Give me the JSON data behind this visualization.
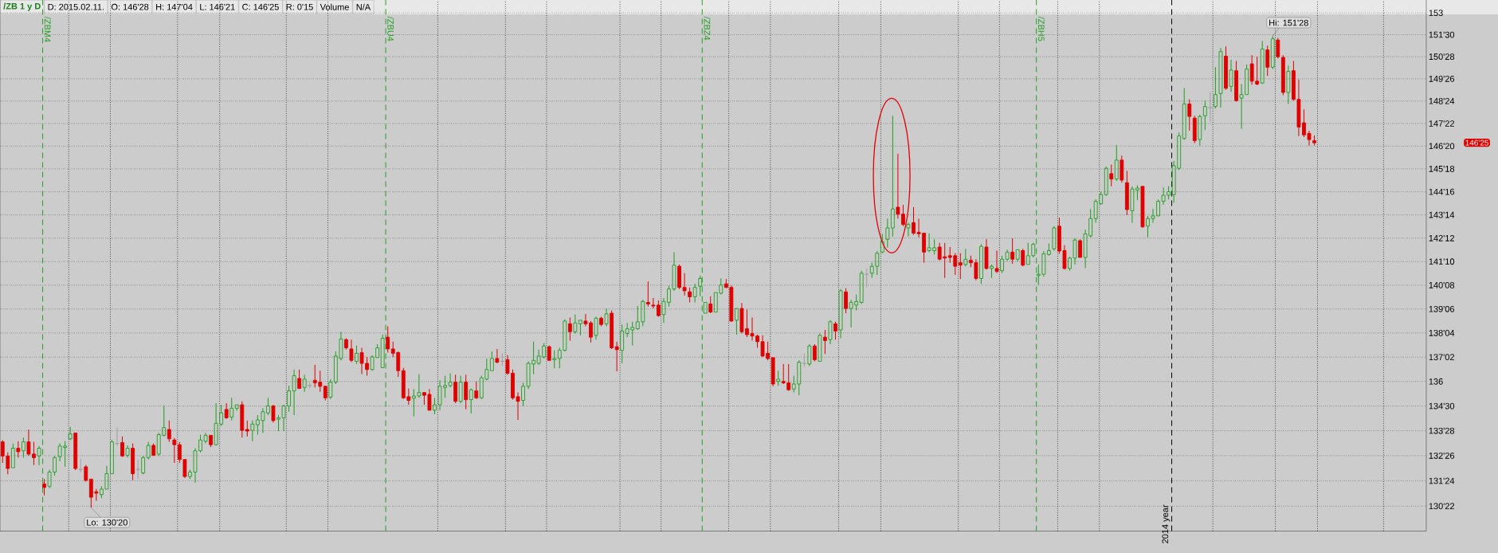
{
  "chart_data": {
    "type": "candlestick",
    "title": "/ZB 1 y D",
    "annotations": [
      "D: 2015.02.11.",
      "O: 146'28",
      "H: 147'04",
      "L: 146'21",
      "C: 146'25",
      "R: 0'15",
      "Volume",
      "N/A",
      "/ZBM4",
      "/ZBU4",
      "/ZBZ4",
      "/ZBH5",
      "2014 year",
      "Lo: 130'20",
      "Hi: 151'28",
      "146'25"
    ],
    "categories": [
      null,
      null,
      null,
      null,
      null,
      null,
      null,
      null,
      null,
      null,
      null,
      null,
      null,
      null,
      null,
      null,
      null,
      null,
      null,
      null,
      null,
      null,
      null,
      null,
      null,
      null,
      null,
      null,
      null,
      null,
      null,
      null,
      null,
      null,
      null,
      null,
      null,
      null,
      null,
      null,
      null,
      null,
      null,
      null,
      null,
      null,
      null,
      null,
      null,
      null,
      null,
      null,
      null,
      null,
      null,
      null,
      null,
      null,
      null,
      null,
      null,
      null,
      null,
      null,
      null,
      null,
      null,
      null,
      null,
      null,
      null,
      null,
      null,
      null,
      null,
      null,
      null,
      null,
      null,
      null,
      null,
      null,
      null,
      null,
      null,
      null,
      null,
      null,
      null,
      null,
      null,
      null,
      null,
      null,
      null,
      null,
      null,
      null,
      null,
      null,
      null,
      null,
      null,
      null,
      null,
      null,
      null,
      null,
      null,
      null,
      null,
      null,
      null,
      null,
      null,
      null,
      null,
      null,
      null,
      null,
      null,
      null,
      null,
      null,
      null,
      null,
      null,
      null,
      null,
      null,
      null,
      null,
      null,
      null,
      null,
      null,
      null,
      null,
      null,
      null,
      null,
      null,
      null,
      null,
      null,
      null,
      null,
      null,
      null,
      null,
      null,
      null,
      null,
      null,
      null,
      null,
      null,
      null,
      null,
      null,
      null,
      null,
      null,
      null,
      null,
      null,
      null,
      null,
      null,
      null,
      null,
      null,
      null,
      null,
      null,
      null,
      null,
      null,
      null,
      null,
      null,
      null,
      null,
      null,
      null,
      null,
      null,
      null,
      null,
      null,
      null,
      null,
      null,
      null,
      null,
      null,
      null,
      null,
      null,
      null,
      null,
      null,
      null,
      null,
      null,
      null,
      null,
      null,
      null,
      null,
      null,
      null,
      null,
      null,
      null,
      null,
      null,
      null,
      null,
      null,
      null,
      null,
      null,
      null,
      null,
      null,
      null,
      null,
      null,
      null,
      null,
      null,
      null,
      null,
      null,
      null,
      null,
      null,
      null,
      null,
      null,
      null,
      null,
      null,
      null,
      null,
      null,
      null,
      null,
      null,
      null,
      null,
      null,
      null,
      null,
      null,
      null,
      null,
      null,
      null,
      null,
      null,
      null,
      null,
      null,
      null,
      null,
      null,
      null,
      null,
      null,
      null,
      null,
      null
    ],
    "ohlc": [
      [
        133.4,
        133.48,
        132.5,
        132.8
      ],
      [
        132.8,
        132.95,
        132.02,
        132.27
      ],
      [
        132.3,
        133.33,
        132.3,
        133.13
      ],
      [
        133.13,
        133.43,
        132.73,
        132.98
      ],
      [
        133.02,
        133.59,
        132.73,
        133.4
      ],
      [
        133.4,
        133.93,
        132.8,
        132.88
      ],
      [
        132.88,
        133.4,
        132.42,
        132.73
      ],
      [
        132.8,
        133.22,
        132.41,
        133.13
      ],
      [
        131.62,
        131.82,
        131.14,
        131.47
      ],
      [
        131.52,
        132.22,
        131.44,
        132.12
      ],
      [
        132.12,
        132.8,
        131.97,
        132.73
      ],
      [
        132.77,
        133.33,
        132.57,
        133.22
      ],
      [
        133.16,
        133.43,
        132.34,
        133.22
      ],
      [
        133.53,
        134.04,
        133.48,
        133.74
      ],
      [
        133.78,
        133.78,
        132.2,
        132.27
      ],
      [
        132.23,
        132.68,
        132.12,
        132.23
      ],
      [
        132.34,
        132.42,
        131.71,
        131.77
      ],
      [
        131.82,
        131.82,
        130.625,
        131.06
      ],
      [
        131.29,
        131.41,
        130.91,
        131.23
      ],
      [
        131.17,
        131.52,
        131.02,
        131.4
      ],
      [
        131.4,
        132.38,
        131.4,
        132.05
      ],
      [
        132.05,
        133.48,
        132.05,
        133.4
      ],
      [
        133.33,
        134.01,
        133.25,
        133.33
      ],
      [
        133.37,
        133.63,
        132.77,
        132.8
      ],
      [
        132.83,
        133.25,
        132.73,
        133.13
      ],
      [
        133.13,
        133.33,
        131.77,
        132.05
      ],
      [
        132.23,
        132.65,
        131.82,
        132.23
      ],
      [
        132.08,
        132.8,
        132.02,
        132.73
      ],
      [
        132.73,
        133.4,
        132.65,
        133.25
      ],
      [
        133.25,
        133.33,
        132.8,
        132.83
      ],
      [
        132.88,
        133.78,
        132.8,
        133.71
      ],
      [
        133.68,
        134.94,
        133.63,
        134.01
      ],
      [
        133.93,
        134.31,
        133.4,
        133.53
      ],
      [
        133.48,
        133.56,
        132.5,
        133.28
      ],
      [
        133.28,
        133.4,
        132.5,
        132.65
      ],
      [
        132.65,
        132.65,
        131.87,
        131.93
      ],
      [
        131.93,
        132.22,
        131.82,
        132.12
      ],
      [
        132.12,
        133.13,
        131.67,
        133.02
      ],
      [
        133.02,
        133.71,
        132.95,
        133.48
      ],
      [
        133.43,
        133.78,
        133.33,
        133.68
      ],
      [
        133.68,
        133.68,
        133.18,
        133.28
      ],
      [
        133.28,
        135.06,
        133.25,
        134.19
      ],
      [
        134.16,
        134.99,
        134.08,
        134.64
      ],
      [
        134.79,
        135.06,
        134.39,
        134.43
      ],
      [
        134.46,
        135.29,
        134.31,
        134.84
      ],
      [
        134.84,
        134.99,
        134.73,
        134.99
      ],
      [
        134.99,
        135.14,
        133.59,
        133.89
      ],
      [
        133.93,
        134.31,
        133.63,
        133.86
      ],
      [
        133.89,
        134.31,
        133.43,
        134.16
      ],
      [
        134.13,
        134.54,
        133.71,
        134.34
      ],
      [
        134.31,
        134.84,
        133.78,
        134.69
      ],
      [
        134.64,
        135.29,
        134.54,
        134.94
      ],
      [
        134.94,
        134.99,
        134.23,
        134.31
      ],
      [
        134.37,
        134.54,
        133.86,
        134.43
      ],
      [
        134.43,
        134.99,
        133.86,
        134.94
      ],
      [
        134.94,
        135.82,
        134.69,
        135.59
      ],
      [
        135.59,
        136.52,
        134.54,
        136.25
      ],
      [
        136.13,
        136.52,
        135.67,
        135.7
      ],
      [
        135.74,
        136.29,
        135.55,
        136.1
      ],
      [
        135.82,
        135.97,
        135.7,
        135.82
      ],
      [
        136.05,
        136.73,
        135.74,
        135.94
      ],
      [
        135.97,
        136.47,
        135.55,
        135.79
      ],
      [
        135.79,
        135.82,
        135.18,
        135.29
      ],
      [
        135.32,
        136.1,
        135.24,
        135.97
      ],
      [
        135.97,
        137.31,
        135.89,
        137.11
      ],
      [
        137.0,
        138.18,
        136.92,
        137.86
      ],
      [
        137.83,
        137.89,
        137.39,
        137.47
      ],
      [
        137.42,
        137.83,
        136.84,
        136.92
      ],
      [
        136.88,
        137.58,
        136.76,
        137.23
      ],
      [
        137.26,
        137.47,
        136.32,
        136.79
      ],
      [
        136.79,
        137.07,
        136.25,
        136.52
      ],
      [
        136.52,
        137.15,
        136.47,
        137.07
      ],
      [
        137.04,
        137.63,
        137.04,
        137.47
      ],
      [
        136.6,
        138.05,
        136.6,
        137.89
      ],
      [
        137.94,
        138.42,
        137.26,
        137.42
      ],
      [
        137.42,
        137.74,
        137.07,
        137.23
      ],
      [
        137.26,
        137.31,
        136.2,
        136.47
      ],
      [
        136.47,
        136.6,
        135.24,
        135.29
      ],
      [
        135.34,
        135.7,
        134.99,
        135.18
      ],
      [
        135.27,
        135.67,
        134.49,
        135.37
      ],
      [
        135.37,
        136.32,
        135.29,
        135.52
      ],
      [
        135.52,
        135.52,
        134.99,
        135.4
      ],
      [
        135.44,
        135.67,
        134.73,
        134.76
      ],
      [
        134.76,
        135.29,
        134.58,
        134.99
      ],
      [
        134.99,
        136.05,
        134.76,
        135.79
      ],
      [
        135.74,
        136.25,
        135.29,
        135.82
      ],
      [
        135.82,
        136.36,
        135.74,
        135.97
      ],
      [
        135.97,
        136.29,
        135.06,
        135.14
      ],
      [
        135.14,
        136.25,
        135.06,
        135.97
      ],
      [
        135.97,
        136.29,
        134.79,
        135.21
      ],
      [
        135.21,
        135.7,
        134.61,
        135.64
      ],
      [
        135.59,
        136.0,
        135.24,
        135.29
      ],
      [
        135.29,
        136.25,
        135.24,
        136.16
      ],
      [
        136.1,
        137.0,
        136.05,
        136.52
      ],
      [
        136.47,
        137.31,
        136.47,
        137.0
      ],
      [
        137.0,
        137.42,
        136.79,
        136.84
      ],
      [
        136.88,
        137.23,
        136.68,
        136.88
      ],
      [
        136.95,
        137.15,
        136.29,
        136.36
      ],
      [
        136.36,
        136.52,
        135.21,
        135.29
      ],
      [
        135.34,
        135.52,
        134.34,
        135.14
      ],
      [
        135.18,
        135.94,
        134.94,
        135.79
      ],
      [
        135.79,
        136.88,
        135.67,
        136.79
      ],
      [
        136.76,
        137.74,
        136.32,
        136.92
      ],
      [
        136.79,
        137.39,
        136.73,
        137.11
      ],
      [
        137.07,
        137.68,
        137.0,
        137.55
      ],
      [
        137.52,
        137.58,
        136.92,
        136.92
      ],
      [
        136.95,
        137.36,
        136.57,
        137.0
      ],
      [
        137.0,
        137.47,
        136.57,
        137.36
      ],
      [
        137.36,
        138.73,
        137.31,
        138.65
      ],
      [
        138.53,
        138.81,
        137.79,
        138.18
      ],
      [
        138.18,
        138.94,
        138.1,
        138.57
      ],
      [
        138.53,
        138.69,
        138.02,
        138.69
      ],
      [
        138.65,
        138.97,
        138.42,
        138.53
      ],
      [
        138.57,
        138.65,
        137.71,
        137.94
      ],
      [
        138.02,
        138.84,
        137.83,
        138.78
      ],
      [
        138.78,
        138.84,
        138.42,
        138.5
      ],
      [
        138.53,
        139.21,
        138.42,
        138.97
      ],
      [
        139.0,
        139.13,
        137.42,
        137.47
      ],
      [
        137.52,
        137.74,
        136.44,
        137.39
      ],
      [
        137.36,
        138.5,
        136.79,
        138.21
      ],
      [
        138.1,
        138.57,
        137.94,
        138.31
      ],
      [
        138.26,
        138.62,
        137.58,
        138.37
      ],
      [
        138.31,
        139.32,
        138.26,
        138.62
      ],
      [
        138.62,
        139.6,
        138.42,
        139.52
      ],
      [
        139.48,
        140.42,
        139.29,
        139.41
      ],
      [
        139.36,
        139.68,
        139.21,
        139.32
      ],
      [
        139.36,
        139.57,
        138.84,
        138.89
      ],
      [
        138.94,
        139.68,
        138.57,
        139.52
      ],
      [
        139.48,
        140.23,
        139.29,
        140.08
      ],
      [
        140.08,
        141.74,
        140.0,
        141.15
      ],
      [
        141.1,
        141.18,
        140.08,
        140.15
      ],
      [
        140.15,
        140.79,
        139.79,
        140.0
      ],
      [
        139.95,
        140.15,
        139.48,
        139.73
      ],
      [
        139.73,
        140.31,
        139.48,
        140.15
      ],
      [
        140.2,
        140.68,
        139.76,
        140.55
      ],
      [
        139.0,
        139.48,
        139.0,
        139.48
      ],
      [
        139.41,
        139.76,
        139.0,
        139.05
      ],
      [
        139.05,
        139.92,
        139.05,
        139.92
      ],
      [
        139.89,
        140.55,
        139.84,
        140.26
      ],
      [
        140.31,
        140.52,
        140.11,
        140.15
      ],
      [
        140.15,
        140.23,
        138.62,
        138.65
      ],
      [
        138.69,
        139.21,
        138.05,
        139.21
      ],
      [
        139.21,
        139.45,
        138.1,
        138.18
      ],
      [
        138.31,
        139.16,
        137.94,
        138.05
      ],
      [
        138.1,
        138.81,
        137.79,
        137.99
      ],
      [
        137.99,
        138.05,
        137.47,
        137.74
      ],
      [
        137.74,
        138.02,
        137.07,
        137.11
      ],
      [
        137.23,
        137.74,
        136.92,
        137.0
      ],
      [
        137.04,
        137.04,
        135.79,
        135.89
      ],
      [
        136.0,
        136.47,
        135.82,
        136.1
      ],
      [
        136.0,
        136.76,
        135.89,
        135.94
      ],
      [
        135.94,
        136.76,
        135.59,
        135.64
      ],
      [
        135.67,
        136.25,
        135.52,
        135.89
      ],
      [
        135.89,
        136.92,
        135.4,
        136.84
      ],
      [
        136.79,
        137.23,
        136.63,
        136.79
      ],
      [
        136.76,
        137.63,
        136.68,
        137.55
      ],
      [
        137.55,
        137.63,
        136.88,
        136.95
      ],
      [
        136.88,
        138.1,
        136.88,
        138.02
      ],
      [
        137.94,
        138.26,
        137.2,
        137.79
      ],
      [
        137.83,
        138.69,
        137.63,
        138.62
      ],
      [
        138.53,
        138.62,
        137.83,
        138.21
      ],
      [
        138.26,
        140.08,
        137.89,
        140.0
      ],
      [
        139.95,
        140.11,
        139.0,
        139.21
      ],
      [
        139.21,
        139.6,
        138.37,
        139.48
      ],
      [
        139.36,
        139.84,
        139.13,
        139.52
      ],
      [
        139.48,
        140.9,
        139.41,
        140.79
      ],
      [
        140.74,
        141.0,
        140.15,
        140.74
      ],
      [
        140.79,
        141.26,
        140.58,
        141.1
      ],
      [
        141.1,
        141.79,
        140.71,
        141.69
      ],
      [
        141.74,
        142.57,
        141.69,
        142.21
      ],
      [
        142.32,
        143.27,
        141.94,
        142.84
      ],
      [
        142.84,
        148.05,
        142.45,
        143.71
      ],
      [
        143.79,
        146.26,
        143.27,
        143.47
      ],
      [
        143.47,
        143.9,
        142.92,
        143.0
      ],
      [
        142.84,
        143.08,
        142.45,
        143.0
      ],
      [
        143.08,
        143.79,
        142.52,
        142.6
      ],
      [
        142.64,
        143.27,
        142.41,
        142.57
      ],
      [
        142.6,
        142.6,
        141.26,
        141.74
      ],
      [
        141.81,
        142.6,
        141.74,
        141.94
      ],
      [
        141.81,
        142.32,
        141.63,
        141.94
      ],
      [
        141.97,
        142.16,
        141.37,
        141.42
      ],
      [
        141.53,
        142.16,
        140.58,
        141.47
      ],
      [
        141.58,
        141.97,
        141.26,
        141.5
      ],
      [
        141.58,
        141.69,
        140.71,
        141.1
      ],
      [
        141.26,
        141.69,
        140.52,
        141.15
      ],
      [
        141.18,
        141.89,
        141.1,
        141.42
      ],
      [
        141.37,
        141.58,
        141.06,
        141.26
      ],
      [
        141.26,
        141.42,
        140.47,
        140.55
      ],
      [
        140.55,
        142.1,
        140.31,
        142.0
      ],
      [
        141.97,
        142.32,
        140.95,
        141.0
      ],
      [
        141.0,
        141.18,
        140.58,
        141.1
      ],
      [
        141.0,
        141.81,
        140.79,
        140.87
      ],
      [
        140.9,
        141.58,
        140.79,
        141.42
      ],
      [
        141.42,
        141.85,
        141.34,
        141.74
      ],
      [
        141.74,
        142.37,
        141.21,
        141.42
      ],
      [
        141.42,
        141.85,
        141.31,
        141.85
      ],
      [
        141.81,
        141.89,
        141.1,
        141.15
      ],
      [
        141.18,
        142.16,
        141.18,
        141.58
      ],
      [
        141.58,
        142.16,
        141.5,
        142.1
      ],
      [
        140.68,
        141.18,
        140.26,
        140.74
      ],
      [
        140.74,
        141.79,
        140.63,
        141.66
      ],
      [
        141.63,
        142.13,
        141.58,
        141.81
      ],
      [
        141.89,
        142.92,
        141.81,
        142.84
      ],
      [
        142.92,
        143.31,
        141.66,
        141.79
      ],
      [
        141.81,
        142.05,
        140.95,
        141.0
      ],
      [
        141.0,
        141.53,
        140.9,
        141.47
      ],
      [
        141.47,
        142.37,
        141.18,
        142.29
      ],
      [
        142.26,
        142.32,
        141.5,
        141.5
      ],
      [
        141.5,
        142.76,
        141.02,
        142.57
      ],
      [
        142.48,
        143.71,
        142.41,
        143.27
      ],
      [
        143.27,
        144.15,
        143.08,
        144.06
      ],
      [
        143.95,
        144.5,
        143.9,
        144.37
      ],
      [
        144.37,
        145.67,
        144.31,
        145.59
      ],
      [
        145.34,
        145.76,
        144.75,
        145.09
      ],
      [
        145.09,
        146.68,
        145.0,
        145.97
      ],
      [
        145.97,
        146.18,
        144.92,
        145.04
      ],
      [
        144.92,
        145.47,
        143.42,
        143.68
      ],
      [
        143.63,
        144.75,
        143.08,
        144.63
      ],
      [
        144.58,
        144.8,
        144.11,
        144.67
      ],
      [
        144.75,
        144.75,
        142.84,
        142.89
      ],
      [
        142.92,
        143.39,
        142.41,
        143.27
      ],
      [
        143.27,
        143.71,
        143.08,
        143.39
      ],
      [
        143.39,
        144.15,
        143.39,
        144.06
      ],
      [
        144.06,
        144.7,
        143.9,
        144.34
      ],
      [
        144.34,
        144.75,
        144.15,
        144.5
      ],
      [
        144.37,
        145.93,
        143.99,
        145.71
      ],
      [
        145.59,
        147.26,
        145.51,
        147.1
      ],
      [
        146.98,
        149.36,
        146.93,
        148.61
      ],
      [
        148.61,
        148.83,
        147.35,
        148.02
      ],
      [
        147.94,
        148.05,
        146.76,
        146.88
      ],
      [
        146.93,
        148.1,
        146.65,
        148.02
      ],
      [
        148.05,
        148.77,
        147.38,
        148.49
      ],
      [
        148.44,
        149.19,
        147.77,
        148.44
      ],
      [
        148.49,
        150.37,
        148.39,
        149.06
      ],
      [
        149.11,
        151.29,
        148.44,
        151.12
      ],
      [
        150.9,
        151.37,
        149.28,
        149.36
      ],
      [
        149.45,
        150.73,
        149.19,
        150.23
      ],
      [
        150.2,
        150.67,
        148.72,
        148.77
      ],
      [
        148.89,
        149.56,
        147.43,
        149.06
      ],
      [
        149.06,
        150.5,
        149.06,
        150.28
      ],
      [
        150.53,
        150.95,
        149.53,
        149.7
      ],
      [
        149.7,
        150.87,
        149.5,
        149.56
      ],
      [
        149.61,
        151.63,
        149.56,
        151.24
      ],
      [
        151.2,
        151.41,
        149.95,
        150.37
      ],
      [
        150.37,
        151.875,
        150.28,
        151.74
      ],
      [
        151.68,
        151.79,
        150.79,
        150.87
      ],
      [
        150.84,
        150.95,
        149.03,
        149.16
      ],
      [
        149.16,
        150.45,
        148.61,
        150.17
      ],
      [
        150.2,
        150.67,
        148.77,
        148.83
      ],
      [
        148.83,
        149.78,
        147.1,
        147.52
      ],
      [
        147.72,
        148.36,
        147.05,
        147.15
      ],
      [
        147.22,
        147.35,
        146.65,
        146.93
      ],
      [
        146.875,
        147.125,
        146.65625,
        146.78125
      ],
      null,
      null,
      null,
      null,
      null,
      null,
      null,
      null,
      null,
      null,
      null,
      null,
      null,
      null,
      null,
      null,
      null,
      null,
      null,
      null,
      null
    ],
    "ylim": [
      129.65,
      153.73
    ],
    "yticks": [
      {
        "value": 130.6875,
        "label": "130'22"
      },
      {
        "value": 131.75,
        "label": "131'24"
      },
      {
        "value": 132.8125,
        "label": "132'26"
      },
      {
        "value": 133.875,
        "label": "133'28"
      },
      {
        "value": 134.9375,
        "label": "134'30"
      },
      136,
      {
        "value": 137.0625,
        "label": "137'02"
      },
      {
        "value": 138.125,
        "label": "138'04"
      },
      {
        "value": 139.1875,
        "label": "139'06"
      },
      {
        "value": 140.25,
        "label": "140'08"
      },
      {
        "value": 141.3125,
        "label": "141'10"
      },
      {
        "value": 142.375,
        "label": "142'12"
      },
      {
        "value": 143.4375,
        "label": "143'14"
      },
      {
        "value": 144.5,
        "label": "144'16"
      },
      {
        "value": 145.5625,
        "label": "145'18"
      },
      {
        "value": 146.625,
        "label": "146'20"
      },
      {
        "value": 147.6875,
        "label": "147'22"
      },
      {
        "value": 148.75,
        "label": "148'24"
      },
      {
        "value": 149.8125,
        "label": "149'26"
      },
      {
        "value": 150.875,
        "label": "150'28"
      },
      {
        "value": 151.9375,
        "label": "151'30"
      },
      153
    ],
    "log": true,
    "grid": "y"
  }
}
